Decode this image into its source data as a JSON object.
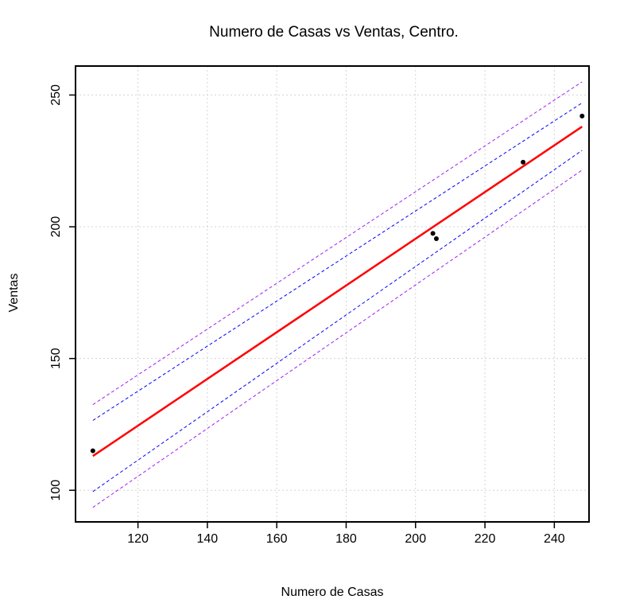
{
  "chart_data": {
    "type": "scatter",
    "title": "Numero de Casas vs Ventas, Centro.",
    "xlabel": "Numero de Casas",
    "ylabel": "Ventas",
    "xlim": [
      102,
      250
    ],
    "ylim": [
      88,
      261
    ],
    "xticks": [
      120,
      140,
      160,
      180,
      200,
      220,
      240
    ],
    "yticks": [
      100,
      150,
      200,
      250
    ],
    "grid": true,
    "points": [
      {
        "x": 107,
        "y": 115
      },
      {
        "x": 205,
        "y": 197.5
      },
      {
        "x": 206,
        "y": 195.5
      },
      {
        "x": 231,
        "y": 224.5
      },
      {
        "x": 248,
        "y": 242
      }
    ],
    "fit_line": {
      "x": [
        107,
        248
      ],
      "y": [
        113,
        238
      ],
      "color": "#ff0000"
    },
    "confidence_band": {
      "x": [
        107,
        248
      ],
      "lower": [
        99.5,
        229
      ],
      "upper": [
        126.5,
        247
      ],
      "color": "#0000ff"
    },
    "prediction_band": {
      "x": [
        107,
        248
      ],
      "lower": [
        93.5,
        221.5
      ],
      "upper": [
        132.5,
        255
      ],
      "color": "#a020f0"
    },
    "point_color": "#000000",
    "grid_color": "#d3d3d3"
  }
}
